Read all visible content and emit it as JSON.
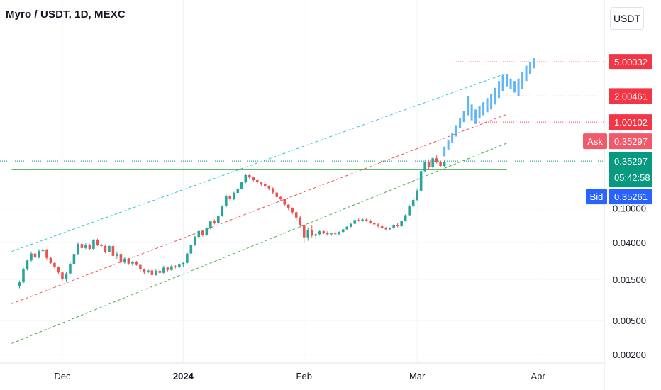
{
  "header": {
    "title": "Myro / USDT, 1D, MEXC",
    "currency_button": "USDT"
  },
  "colors": {
    "up": "#26a69a",
    "down": "#ef5350",
    "projection": "#64b5f6",
    "upper_channel": "#26c6da",
    "mid_channel": "#ef5350",
    "lower_channel": "#4caf50",
    "resistance": "#4caf50",
    "label_red": "#f23645",
    "label_ask": "#f05a6b",
    "label_green": "#089981",
    "label_bid": "#2962ff",
    "current_price_line": "#089981"
  },
  "chart_data": {
    "type": "candlestick",
    "scale": "log",
    "title": "Myro / USDT, 1D, MEXC",
    "x_axis": {
      "ticks": [
        {
          "label": "Dec",
          "date": "2023-12-01"
        },
        {
          "label": "2024",
          "date": "2024-01-01",
          "bold": true
        },
        {
          "label": "Feb",
          "date": "2024-02-01"
        },
        {
          "label": "Mar",
          "date": "2024-03-01"
        },
        {
          "label": "Apr",
          "date": "2024-04-01"
        }
      ],
      "range": [
        "2023-11-15",
        "2024-04-18"
      ]
    },
    "y_axis": {
      "ticks": [
        "0.00200",
        "0.00500",
        "0.01500",
        "0.04000",
        "0.10000"
      ],
      "range": [
        0.0016,
        10.5
      ],
      "partially_hidden_top_tick": "5.00000"
    },
    "candles_start_date": "2023-11-20",
    "candles": [
      [
        0.0125,
        0.0145,
        0.0118,
        0.0138
      ],
      [
        0.0138,
        0.0205,
        0.0135,
        0.0196
      ],
      [
        0.0196,
        0.0255,
        0.019,
        0.0248
      ],
      [
        0.0248,
        0.0315,
        0.024,
        0.0298
      ],
      [
        0.0298,
        0.0345,
        0.0255,
        0.0268
      ],
      [
        0.0268,
        0.0335,
        0.0262,
        0.0318
      ],
      [
        0.0318,
        0.0345,
        0.03,
        0.0332
      ],
      [
        0.0332,
        0.0338,
        0.0255,
        0.0265
      ],
      [
        0.0265,
        0.027,
        0.0225,
        0.0232
      ],
      [
        0.0232,
        0.024,
        0.02,
        0.0208
      ],
      [
        0.0208,
        0.0212,
        0.0172,
        0.018
      ],
      [
        0.018,
        0.0185,
        0.0145,
        0.0152
      ],
      [
        0.0152,
        0.0185,
        0.014,
        0.0175
      ],
      [
        0.0175,
        0.0235,
        0.017,
        0.0225
      ],
      [
        0.0225,
        0.0305,
        0.022,
        0.0295
      ],
      [
        0.0295,
        0.0405,
        0.0285,
        0.0385
      ],
      [
        0.0385,
        0.04,
        0.033,
        0.0345
      ],
      [
        0.0345,
        0.0395,
        0.0335,
        0.0372
      ],
      [
        0.0372,
        0.0385,
        0.033,
        0.0338
      ],
      [
        0.0338,
        0.044,
        0.033,
        0.0428
      ],
      [
        0.0428,
        0.0445,
        0.0365,
        0.0375
      ],
      [
        0.0375,
        0.039,
        0.035,
        0.0365
      ],
      [
        0.0365,
        0.038,
        0.03,
        0.0312
      ],
      [
        0.0312,
        0.038,
        0.0305,
        0.0365
      ],
      [
        0.0365,
        0.037,
        0.027,
        0.028
      ],
      [
        0.028,
        0.0315,
        0.026,
        0.0295
      ],
      [
        0.0295,
        0.031,
        0.0225,
        0.0235
      ],
      [
        0.0235,
        0.027,
        0.0225,
        0.026
      ],
      [
        0.026,
        0.0265,
        0.022,
        0.0228
      ],
      [
        0.0228,
        0.0245,
        0.0215,
        0.0238
      ],
      [
        0.0238,
        0.0245,
        0.0215,
        0.022
      ],
      [
        0.022,
        0.0225,
        0.0185,
        0.0195
      ],
      [
        0.0195,
        0.02,
        0.0172,
        0.018
      ],
      [
        0.018,
        0.0195,
        0.0175,
        0.019
      ],
      [
        0.019,
        0.02,
        0.016,
        0.0168
      ],
      [
        0.0168,
        0.0195,
        0.0165,
        0.0188
      ],
      [
        0.0188,
        0.02,
        0.017,
        0.0178
      ],
      [
        0.0178,
        0.0215,
        0.0175,
        0.0205
      ],
      [
        0.0205,
        0.0208,
        0.0185,
        0.0192
      ],
      [
        0.0192,
        0.022,
        0.0188,
        0.0212
      ],
      [
        0.0212,
        0.0218,
        0.02,
        0.0208
      ],
      [
        0.0208,
        0.023,
        0.02,
        0.0222
      ],
      [
        0.0222,
        0.024,
        0.021,
        0.0232
      ],
      [
        0.0232,
        0.031,
        0.0225,
        0.0298
      ],
      [
        0.0298,
        0.0385,
        0.029,
        0.0375
      ],
      [
        0.0375,
        0.048,
        0.0365,
        0.0465
      ],
      [
        0.0465,
        0.056,
        0.044,
        0.0545
      ],
      [
        0.0545,
        0.056,
        0.047,
        0.049
      ],
      [
        0.049,
        0.06,
        0.048,
        0.0585
      ],
      [
        0.0585,
        0.072,
        0.057,
        0.0705
      ],
      [
        0.0705,
        0.074,
        0.065,
        0.067
      ],
      [
        0.067,
        0.083,
        0.065,
        0.0815
      ],
      [
        0.0815,
        0.108,
        0.08,
        0.105
      ],
      [
        0.105,
        0.145,
        0.102,
        0.14
      ],
      [
        0.14,
        0.148,
        0.122,
        0.127
      ],
      [
        0.127,
        0.155,
        0.124,
        0.151
      ],
      [
        0.151,
        0.172,
        0.148,
        0.168
      ],
      [
        0.168,
        0.205,
        0.165,
        0.2
      ],
      [
        0.2,
        0.248,
        0.195,
        0.242
      ],
      [
        0.242,
        0.252,
        0.22,
        0.228
      ],
      [
        0.228,
        0.232,
        0.205,
        0.212
      ],
      [
        0.212,
        0.22,
        0.19,
        0.2
      ],
      [
        0.2,
        0.205,
        0.18,
        0.19
      ],
      [
        0.19,
        0.195,
        0.172,
        0.18
      ],
      [
        0.18,
        0.185,
        0.162,
        0.17
      ],
      [
        0.17,
        0.175,
        0.145,
        0.152
      ],
      [
        0.152,
        0.155,
        0.128,
        0.135
      ],
      [
        0.135,
        0.14,
        0.122,
        0.128
      ],
      [
        0.128,
        0.13,
        0.105,
        0.11
      ],
      [
        0.11,
        0.112,
        0.095,
        0.1
      ],
      [
        0.1,
        0.102,
        0.085,
        0.09
      ],
      [
        0.09,
        0.092,
        0.072,
        0.078
      ],
      [
        0.078,
        0.082,
        0.06,
        0.064
      ],
      [
        0.064,
        0.065,
        0.04,
        0.046
      ],
      [
        0.046,
        0.06,
        0.042,
        0.056
      ],
      [
        0.056,
        0.064,
        0.046,
        0.048
      ],
      [
        0.048,
        0.052,
        0.044,
        0.05
      ],
      [
        0.05,
        0.056,
        0.048,
        0.054
      ],
      [
        0.054,
        0.056,
        0.05,
        0.052
      ],
      [
        0.052,
        0.054,
        0.048,
        0.05
      ],
      [
        0.05,
        0.052,
        0.048,
        0.051
      ],
      [
        0.051,
        0.053,
        0.049,
        0.05
      ],
      [
        0.05,
        0.054,
        0.049,
        0.053
      ],
      [
        0.053,
        0.058,
        0.052,
        0.057
      ],
      [
        0.057,
        0.062,
        0.056,
        0.061
      ],
      [
        0.061,
        0.067,
        0.06,
        0.066
      ],
      [
        0.066,
        0.074,
        0.065,
        0.073
      ],
      [
        0.073,
        0.076,
        0.07,
        0.072
      ],
      [
        0.072,
        0.076,
        0.07,
        0.074
      ],
      [
        0.074,
        0.076,
        0.07,
        0.072
      ],
      [
        0.072,
        0.074,
        0.066,
        0.068
      ],
      [
        0.068,
        0.07,
        0.063,
        0.065
      ],
      [
        0.065,
        0.067,
        0.06,
        0.062
      ],
      [
        0.062,
        0.064,
        0.057,
        0.059
      ],
      [
        0.059,
        0.061,
        0.055,
        0.057
      ],
      [
        0.057,
        0.06,
        0.056,
        0.059
      ],
      [
        0.059,
        0.065,
        0.058,
        0.064
      ],
      [
        0.064,
        0.068,
        0.06,
        0.062
      ],
      [
        0.062,
        0.072,
        0.061,
        0.071
      ],
      [
        0.071,
        0.085,
        0.07,
        0.083
      ],
      [
        0.083,
        0.11,
        0.082,
        0.105
      ],
      [
        0.105,
        0.135,
        0.1,
        0.125
      ],
      [
        0.125,
        0.17,
        0.12,
        0.16
      ],
      [
        0.16,
        0.28,
        0.155,
        0.27
      ],
      [
        0.27,
        0.36,
        0.26,
        0.345
      ],
      [
        0.345,
        0.37,
        0.28,
        0.3
      ],
      [
        0.3,
        0.39,
        0.29,
        0.38
      ],
      [
        0.38,
        0.41,
        0.33,
        0.345
      ],
      [
        0.345,
        0.355,
        0.3,
        0.31
      ],
      [
        0.31,
        0.36,
        0.3,
        0.345
      ]
    ],
    "projection_bars": [
      [
        0.4,
        0.52
      ],
      [
        0.48,
        0.62
      ],
      [
        0.58,
        0.74
      ],
      [
        0.68,
        0.92
      ],
      [
        0.85,
        1.1
      ],
      [
        1.0,
        1.35
      ],
      [
        1.2,
        2.0
      ],
      [
        1.05,
        1.6
      ],
      [
        0.95,
        1.4
      ],
      [
        1.1,
        1.55
      ],
      [
        1.2,
        1.7
      ],
      [
        1.3,
        1.9
      ],
      [
        1.4,
        2.1
      ],
      [
        1.6,
        2.5
      ],
      [
        1.9,
        3.0
      ],
      [
        2.3,
        3.5
      ],
      [
        2.6,
        3.6
      ],
      [
        2.4,
        3.2
      ],
      [
        2.2,
        3.0
      ],
      [
        2.0,
        3.2
      ],
      [
        2.4,
        3.8
      ],
      [
        3.0,
        4.5
      ],
      [
        3.6,
        5.0
      ],
      [
        4.2,
        5.5
      ]
    ],
    "projection_start_date": "2024-03-08",
    "channels": [
      {
        "name": "upper",
        "from": [
          "2023-11-18",
          0.0315
        ],
        "to": [
          "2024-03-24",
          3.7
        ]
      },
      {
        "name": "middle",
        "from": [
          "2023-11-18",
          0.0078
        ],
        "to": [
          "2024-03-24",
          1.23
        ]
      },
      {
        "name": "lower",
        "from": [
          "2023-11-18",
          0.0027
        ],
        "to": [
          "2024-03-24",
          0.57
        ]
      }
    ],
    "resistance": {
      "value": 0.28,
      "from": "2023-11-18",
      "to": "2024-03-24"
    },
    "current_price": 0.35297,
    "target_levels": [
      {
        "value": 5.00032,
        "from": "2024-03-11"
      },
      {
        "value": 2.00461,
        "from": "2024-03-17"
      },
      {
        "value": 1.00102,
        "from": "2024-03-17"
      }
    ],
    "price_labels": {
      "target1": "5.00032",
      "target2": "2.00461",
      "target3": "1.00102",
      "ask_tag": "Ask",
      "ask_value": "0.35297",
      "last_value": "0.35297",
      "countdown": "05:42:58",
      "bid_tag": "Bid",
      "bid_value": "0.35261"
    },
    "price_label_values": {
      "ask": 0.35297,
      "last": 0.35297,
      "bid": 0.35261
    }
  }
}
